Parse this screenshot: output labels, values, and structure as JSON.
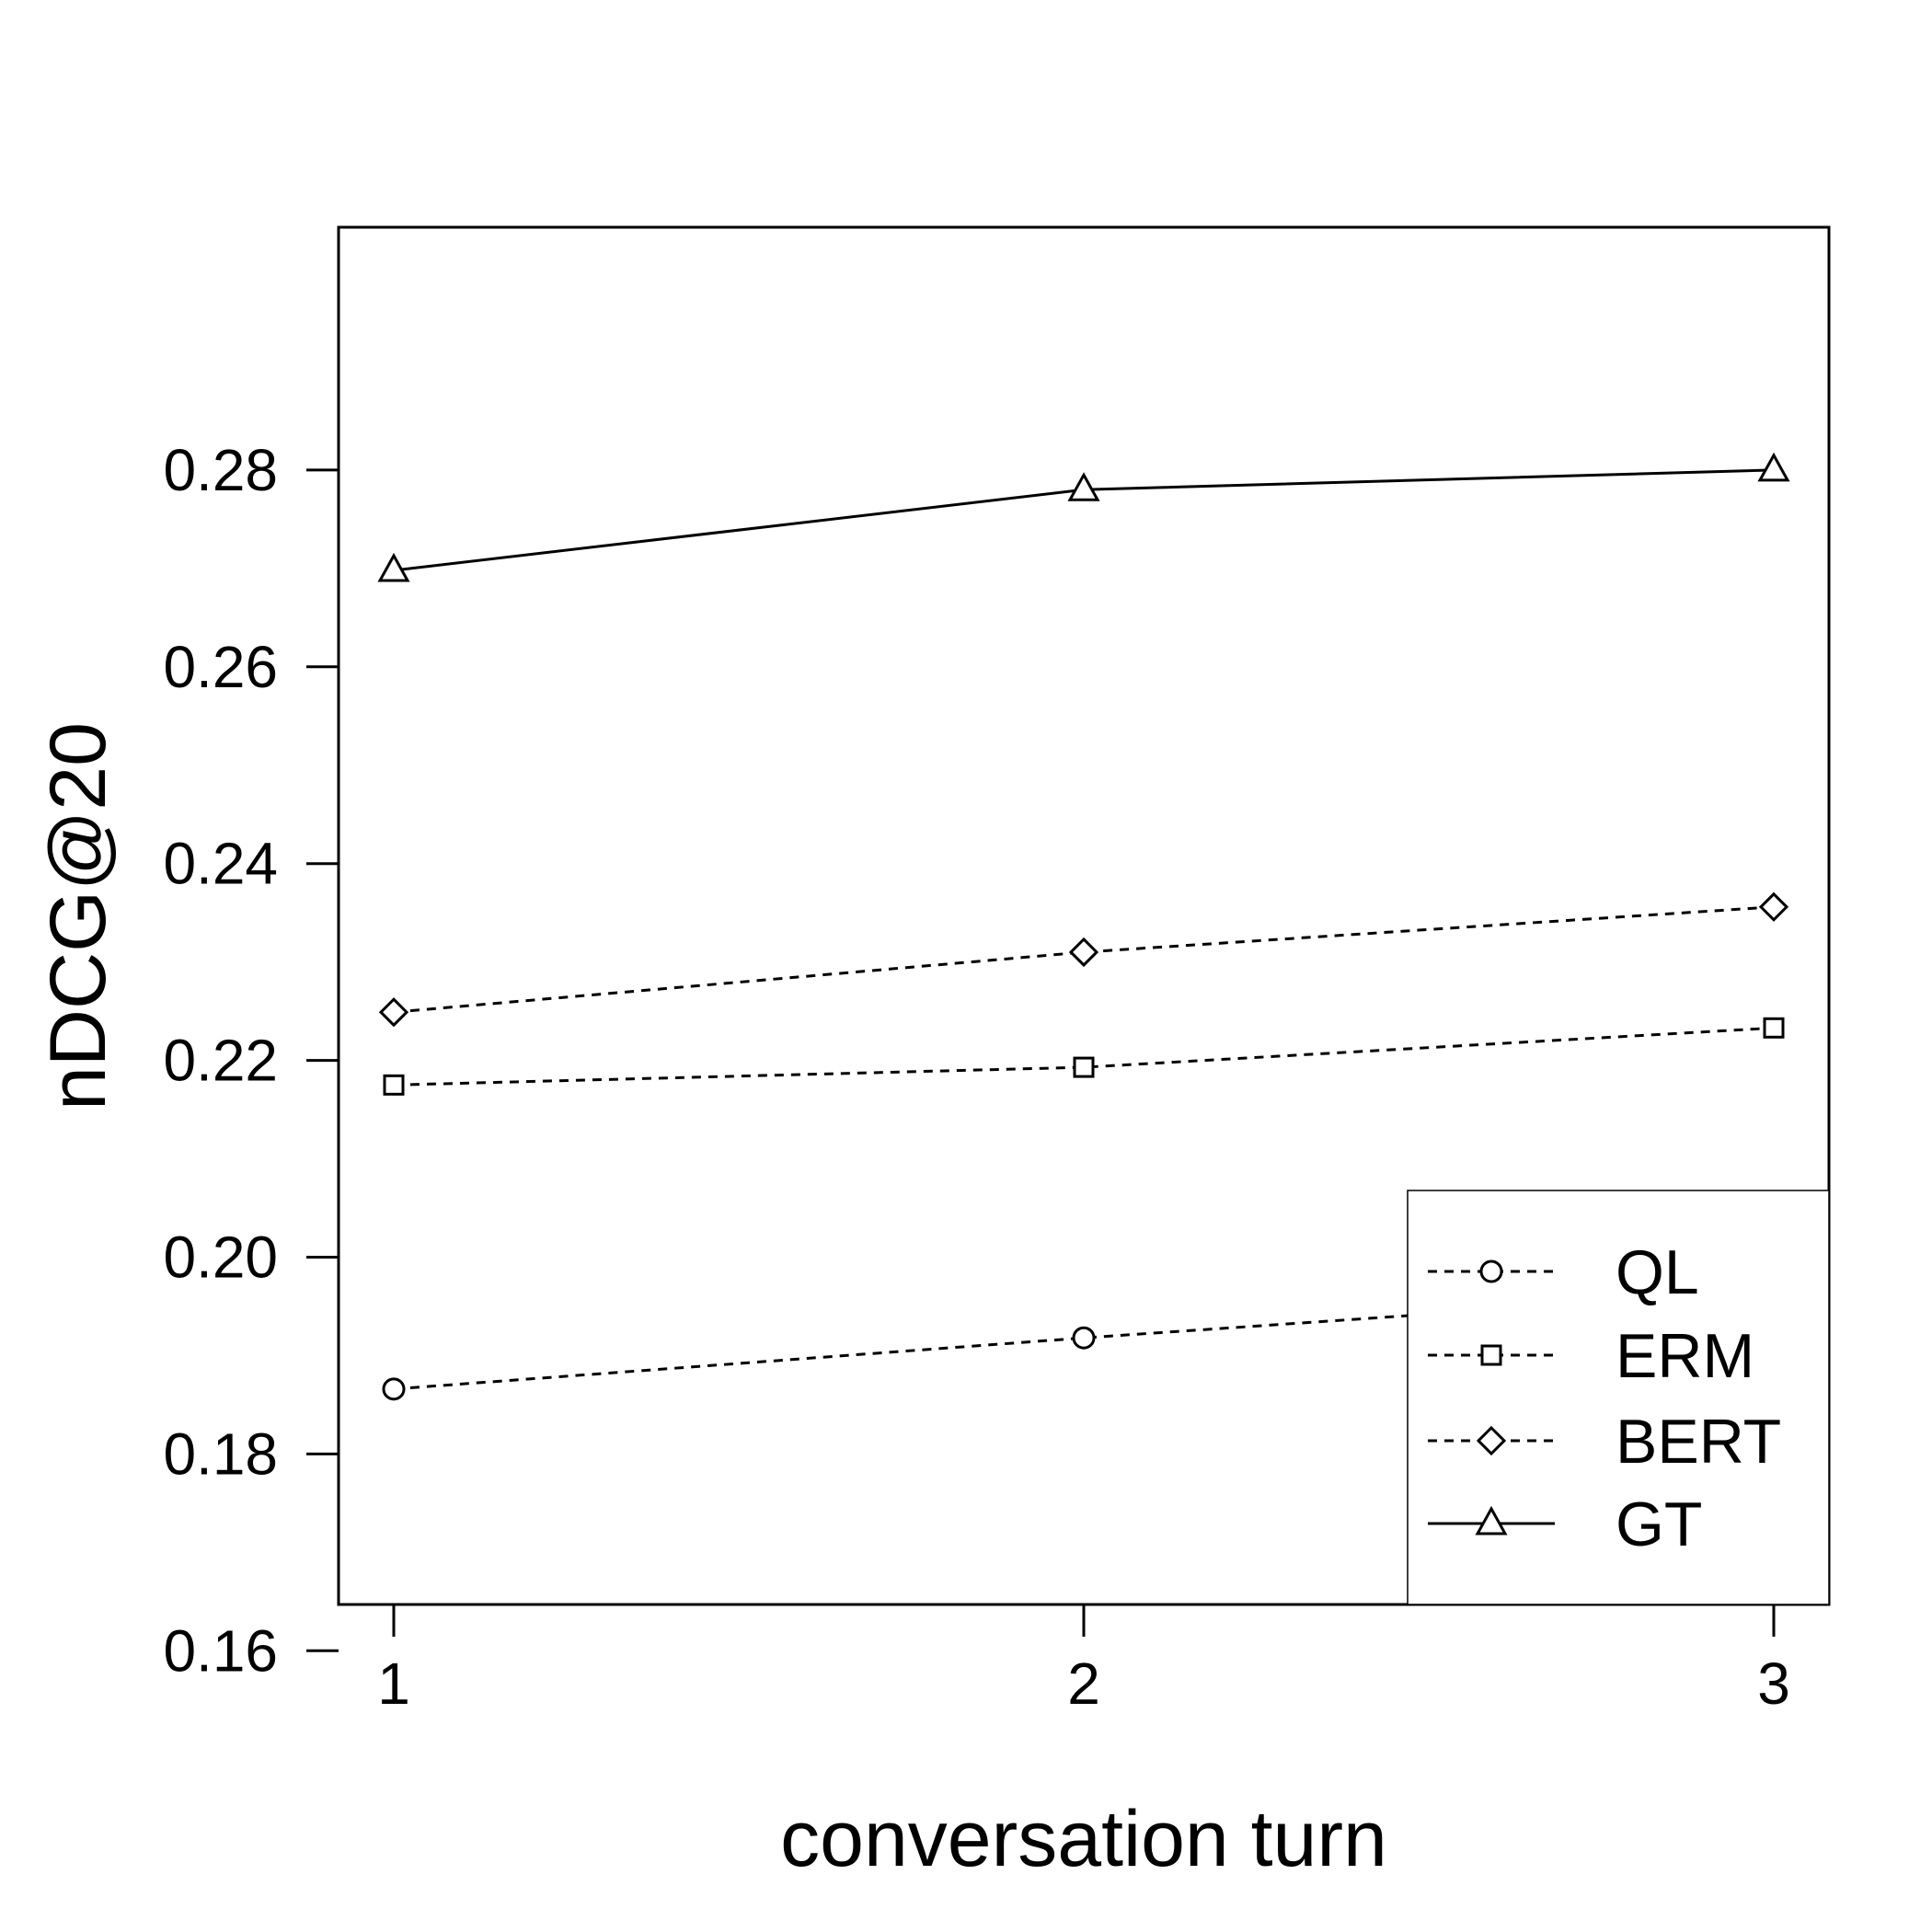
{
  "chart_data": {
    "type": "line",
    "title": "",
    "xlabel": "conversation turn",
    "ylabel": "nDCG@20",
    "x": [
      1,
      2,
      3
    ],
    "xticks": [
      "1",
      "2",
      "3"
    ],
    "ylim": [
      0.145,
      0.285
    ],
    "yticks": [
      "0.16",
      "0.18",
      "0.20",
      "0.22",
      "0.24",
      "0.26",
      "0.28"
    ],
    "legend_position": "bottom-right",
    "grid": false,
    "series": [
      {
        "name": "QL",
        "marker": "circle",
        "line": "dashed",
        "values": [
          0.1866,
          0.1918,
          0.1966
        ]
      },
      {
        "name": "ERM",
        "marker": "square",
        "line": "dashed",
        "values": [
          0.2175,
          0.2193,
          0.2233
        ]
      },
      {
        "name": "BERT",
        "marker": "diamond",
        "line": "dashed",
        "values": [
          0.2249,
          0.231,
          0.2356
        ]
      },
      {
        "name": "GT",
        "marker": "triangle",
        "line": "solid",
        "values": [
          0.2698,
          0.278,
          0.28
        ]
      }
    ]
  }
}
